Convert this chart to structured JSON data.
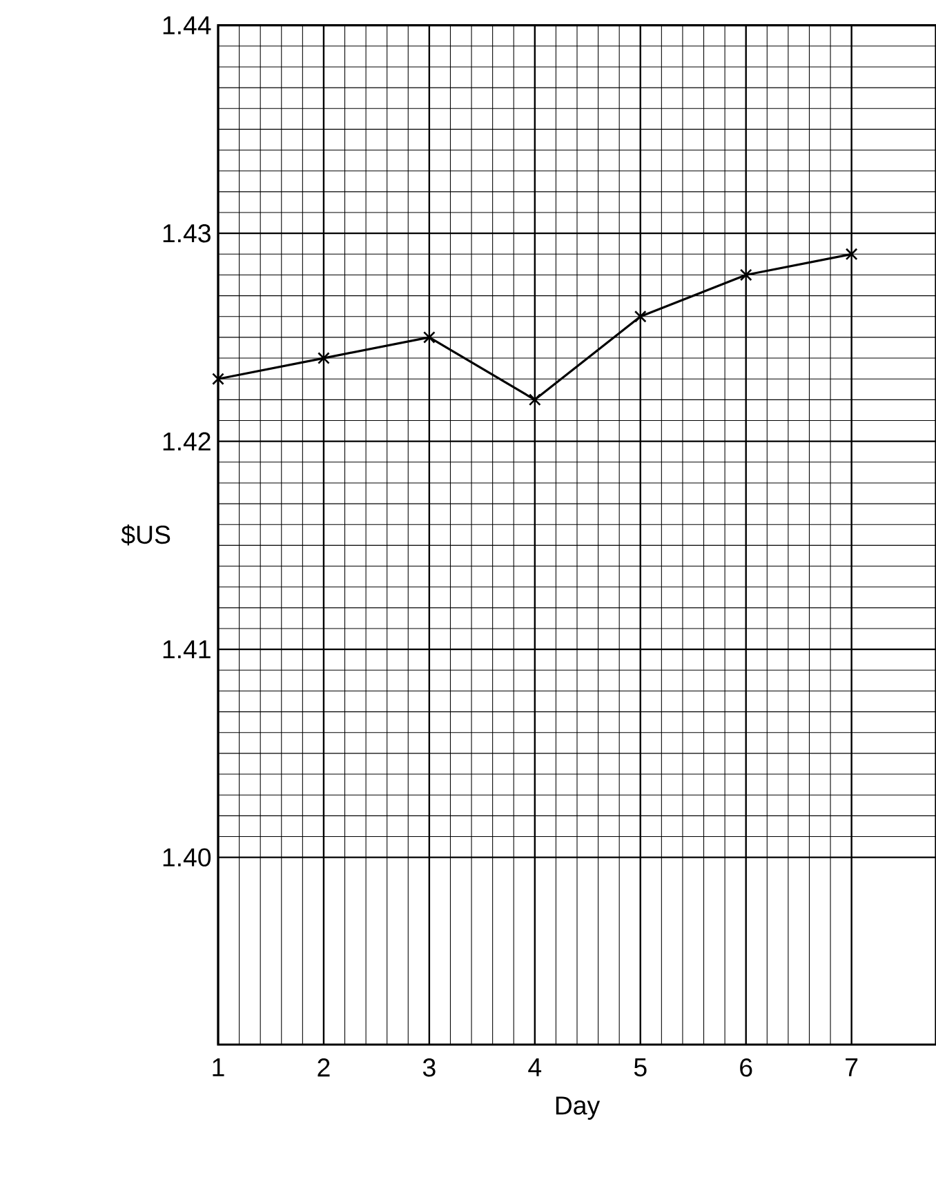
{
  "chart_data": {
    "type": "line",
    "xlabel": "Day",
    "ylabel": "$US",
    "x": [
      1,
      2,
      3,
      4,
      5,
      6,
      7
    ],
    "series": [
      {
        "color": "#000000",
        "values": [
          1.423,
          1.424,
          1.425,
          1.422,
          1.426,
          1.428,
          1.429
        ]
      }
    ],
    "xlim": [
      1,
      7.8
    ],
    "ylim": [
      1.391,
      1.44
    ],
    "xticks": [
      1,
      2,
      3,
      4,
      5,
      6,
      7
    ],
    "yticks": [
      {
        "value": 1.4,
        "label": "1.40"
      },
      1.41,
      1.42,
      1.43,
      1.44
    ],
    "grid": true,
    "marker": "cross",
    "line_style": "solid"
  }
}
